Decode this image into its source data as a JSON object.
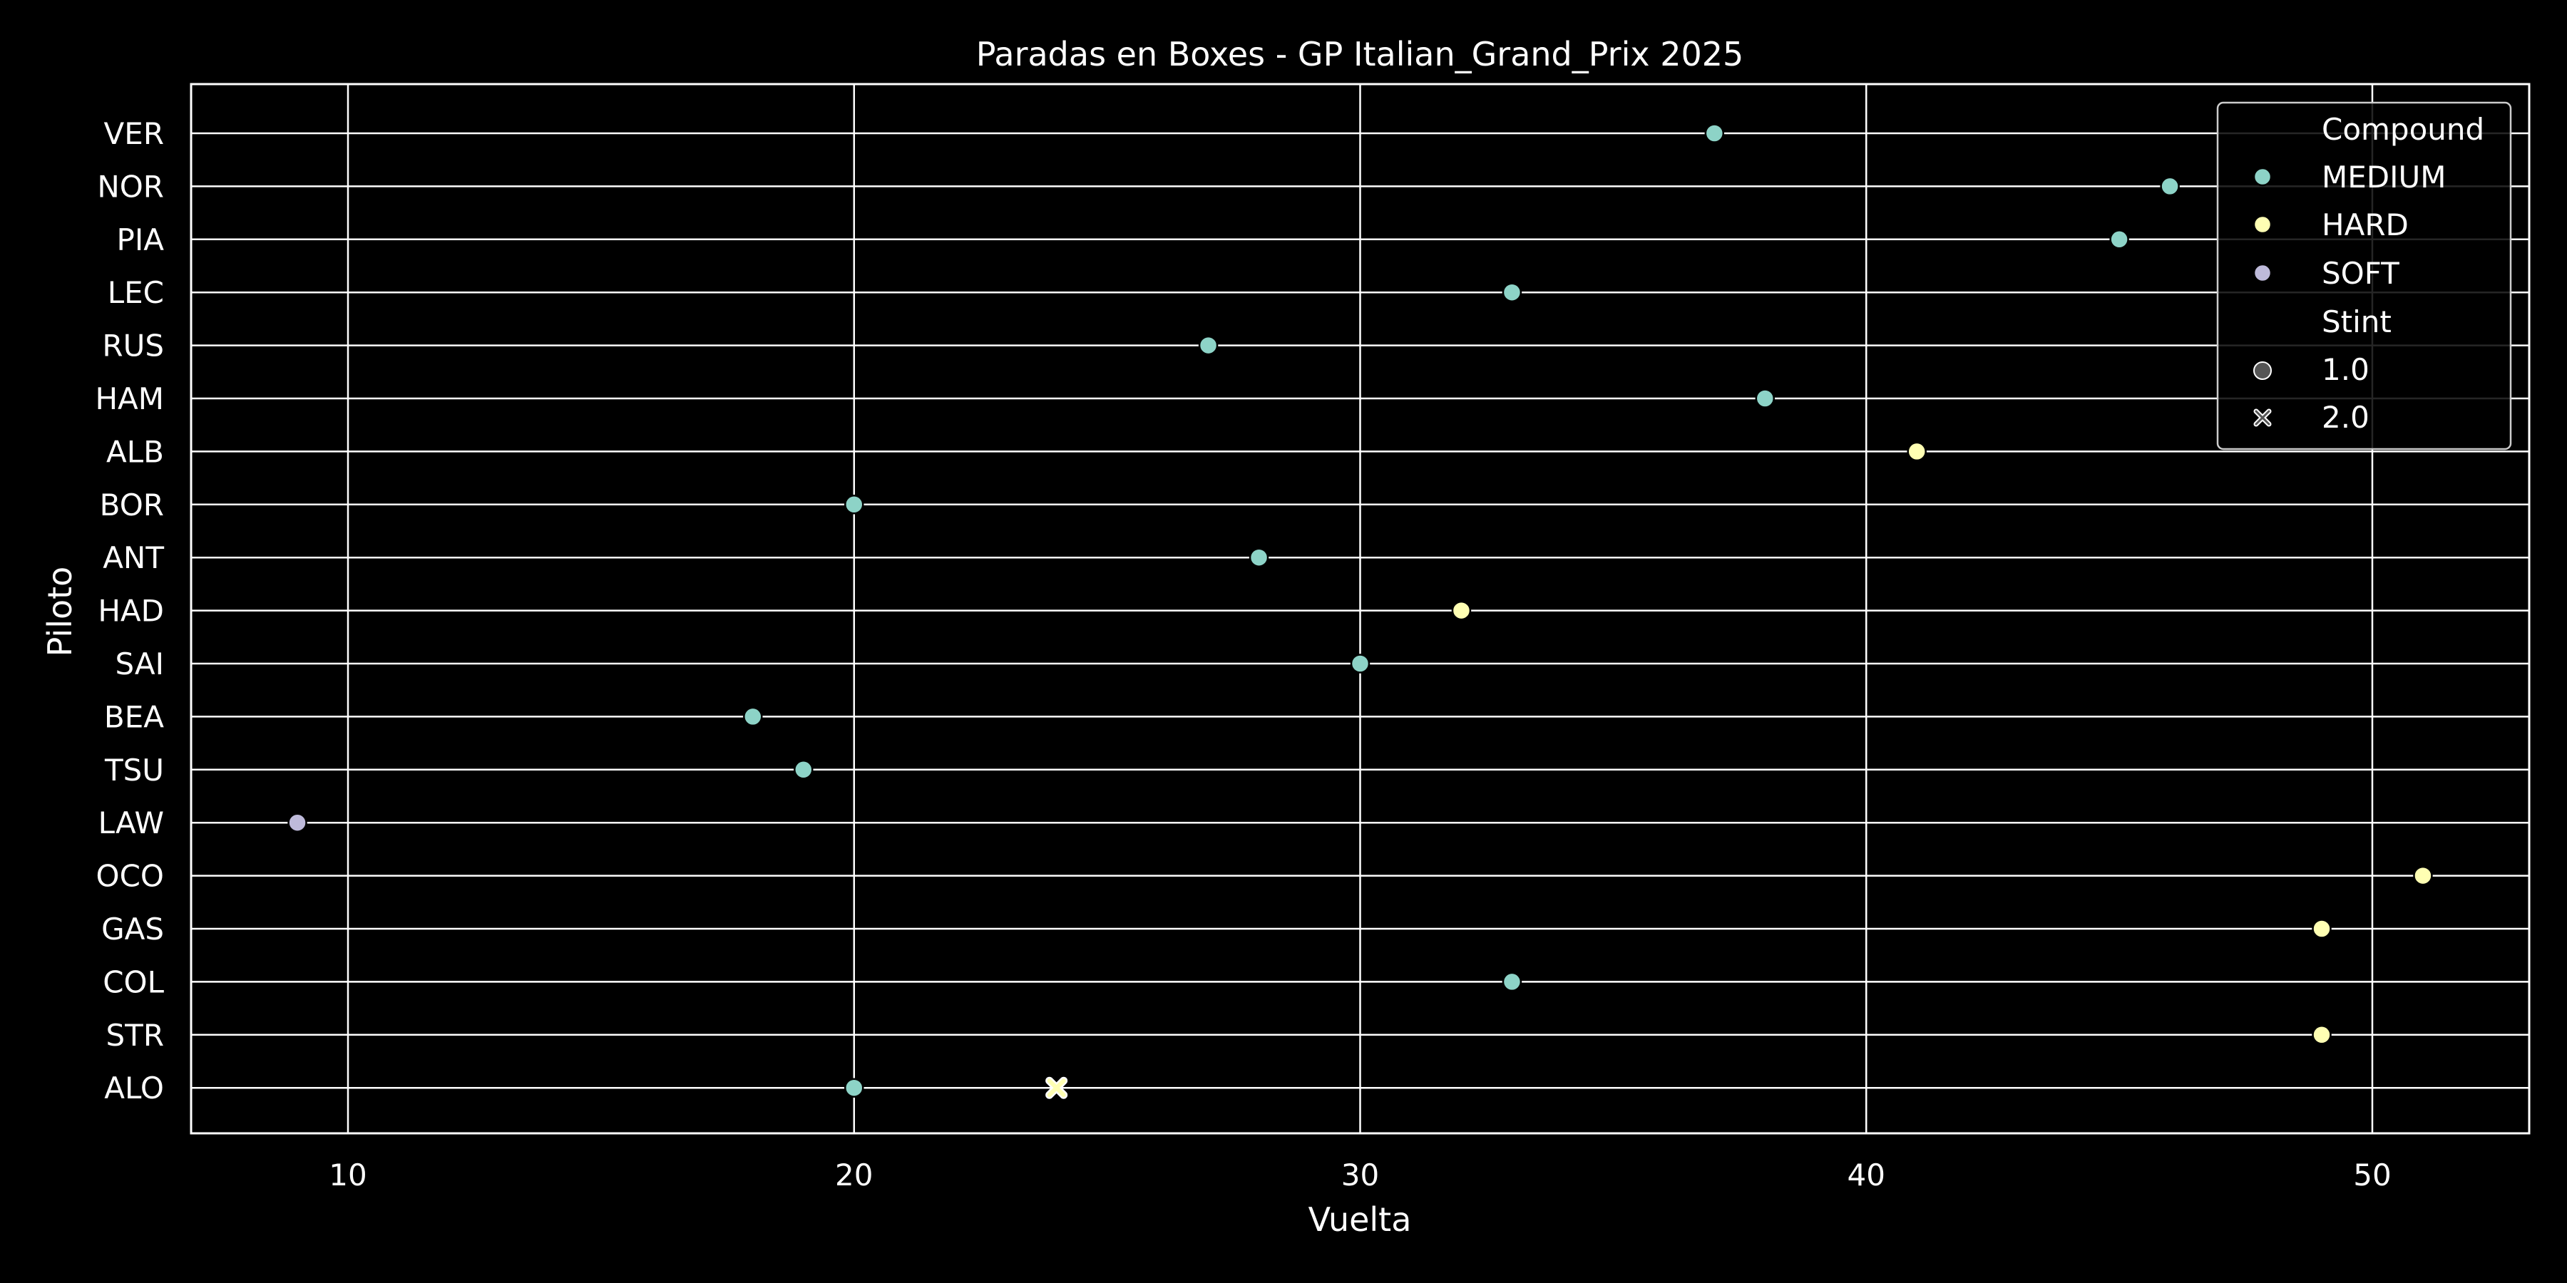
{
  "chart_data": {
    "type": "scatter",
    "title": "Paradas en Boxes - GP Italian_Grand_Prix 2025",
    "xlabel": "Vuelta",
    "ylabel": "Piloto",
    "xlim": [
      6.9,
      53.1
    ],
    "x_ticks": [
      10,
      20,
      30,
      40,
      50
    ],
    "x_tick_labels": [
      "10",
      "20",
      "30",
      "40",
      "50"
    ],
    "categories": [
      "VER",
      "NOR",
      "PIA",
      "LEC",
      "RUS",
      "HAM",
      "ALB",
      "BOR",
      "ANT",
      "HAD",
      "SAI",
      "BEA",
      "TSU",
      "LAW",
      "OCO",
      "GAS",
      "COL",
      "STR",
      "ALO"
    ],
    "grid": true,
    "legend_position": "top-right",
    "legend": {
      "hue_title": "Compound",
      "compounds": [
        {
          "name": "MEDIUM",
          "color": "#8dd3c7"
        },
        {
          "name": "HARD",
          "color": "#ffffb3"
        },
        {
          "name": "SOFT",
          "color": "#bebada"
        }
      ],
      "style_title": "Stint",
      "stints": [
        {
          "label": "1.0",
          "marker": "circle"
        },
        {
          "label": "2.0",
          "marker": "x"
        }
      ]
    },
    "points": [
      {
        "driver": "VER",
        "lap": 37,
        "compound": "MEDIUM",
        "stint": 1.0
      },
      {
        "driver": "NOR",
        "lap": 46,
        "compound": "MEDIUM",
        "stint": 1.0
      },
      {
        "driver": "PIA",
        "lap": 45,
        "compound": "MEDIUM",
        "stint": 1.0
      },
      {
        "driver": "LEC",
        "lap": 33,
        "compound": "MEDIUM",
        "stint": 1.0
      },
      {
        "driver": "RUS",
        "lap": 27,
        "compound": "MEDIUM",
        "stint": 1.0
      },
      {
        "driver": "HAM",
        "lap": 38,
        "compound": "MEDIUM",
        "stint": 1.0
      },
      {
        "driver": "ALB",
        "lap": 41,
        "compound": "HARD",
        "stint": 1.0
      },
      {
        "driver": "BOR",
        "lap": 20,
        "compound": "MEDIUM",
        "stint": 1.0
      },
      {
        "driver": "ANT",
        "lap": 28,
        "compound": "MEDIUM",
        "stint": 1.0
      },
      {
        "driver": "HAD",
        "lap": 32,
        "compound": "HARD",
        "stint": 1.0
      },
      {
        "driver": "SAI",
        "lap": 30,
        "compound": "MEDIUM",
        "stint": 1.0
      },
      {
        "driver": "BEA",
        "lap": 18,
        "compound": "MEDIUM",
        "stint": 1.0
      },
      {
        "driver": "TSU",
        "lap": 19,
        "compound": "MEDIUM",
        "stint": 1.0
      },
      {
        "driver": "LAW",
        "lap": 9,
        "compound": "SOFT",
        "stint": 1.0
      },
      {
        "driver": "OCO",
        "lap": 51,
        "compound": "HARD",
        "stint": 1.0
      },
      {
        "driver": "GAS",
        "lap": 49,
        "compound": "HARD",
        "stint": 1.0
      },
      {
        "driver": "COL",
        "lap": 33,
        "compound": "MEDIUM",
        "stint": 1.0
      },
      {
        "driver": "STR",
        "lap": 49,
        "compound": "HARD",
        "stint": 1.0
      },
      {
        "driver": "ALO",
        "lap": 20,
        "compound": "MEDIUM",
        "stint": 1.0
      },
      {
        "driver": "ALO",
        "lap": 24,
        "compound": "HARD",
        "stint": 2.0
      }
    ]
  }
}
